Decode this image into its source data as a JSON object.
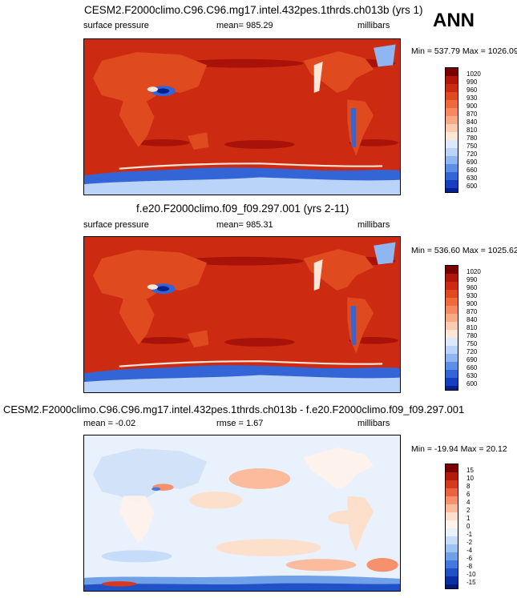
{
  "header": {
    "season": "ANN"
  },
  "panels": [
    {
      "title": "CESM2.F2000climo.C96.C96.mg17.intel.432pes.1thrds.ch013b (yrs 1)",
      "variable": "surface pressure",
      "mean": "mean= 985.29",
      "units": "millibars",
      "minmax": "Min = 537.79 Max = 1026.09",
      "colorbar_labels": [
        "1020",
        "990",
        "960",
        "930",
        "900",
        "870",
        "840",
        "810",
        "780",
        "750",
        "720",
        "690",
        "660",
        "630",
        "600"
      ],
      "colorbar_colors": [
        "#7a0000",
        "#b0170a",
        "#cc2b12",
        "#df4a1f",
        "#ee6a3b",
        "#f58a5f",
        "#f9aa85",
        "#fccab0",
        "#fde6d6",
        "#dce9fb",
        "#bad3f8",
        "#8fb6f0",
        "#5e8fe6",
        "#3465d6",
        "#173ebf",
        "#05218e"
      ]
    },
    {
      "title": "f.e20.F2000climo.f09_f09.297.001 (yrs 2-11)",
      "variable": "surface pressure",
      "mean": "mean= 985.31",
      "units": "millibars",
      "minmax": "Min = 536.60 Max = 1025.62",
      "colorbar_labels": [
        "1020",
        "990",
        "960",
        "930",
        "900",
        "870",
        "840",
        "810",
        "780",
        "750",
        "720",
        "690",
        "660",
        "630",
        "600"
      ],
      "colorbar_colors": [
        "#7a0000",
        "#b0170a",
        "#cc2b12",
        "#df4a1f",
        "#ee6a3b",
        "#f58a5f",
        "#f9aa85",
        "#fccab0",
        "#fde6d6",
        "#dce9fb",
        "#bad3f8",
        "#8fb6f0",
        "#5e8fe6",
        "#3465d6",
        "#173ebf",
        "#05218e"
      ]
    },
    {
      "title": "CESM2.F2000climo.C96.C96.mg17.intel.432pes.1thrds.ch013b - f.e20.F2000climo.f09_f09.297.001",
      "mean": "mean =  -0.02",
      "rmse": "rmse =   1.67",
      "units": "millibars",
      "minmax": "Min = -19.94 Max =  20.12",
      "colorbar_labels": [
        "15",
        "10",
        "8",
        "6",
        "4",
        "2",
        "1",
        "0",
        "-1",
        "-2",
        "-4",
        "-6",
        "-8",
        "-10",
        "-15"
      ],
      "colorbar_colors": [
        "#7a0000",
        "#b21a0c",
        "#d7391c",
        "#ec6340",
        "#f7906c",
        "#fcbb9c",
        "#fde0cc",
        "#fff3ea",
        "#e8f1fc",
        "#c7dcf8",
        "#9ec2f2",
        "#6fa0e8",
        "#4478dc",
        "#2150c7",
        "#0b2ea5",
        "#021a7c"
      ]
    }
  ]
}
